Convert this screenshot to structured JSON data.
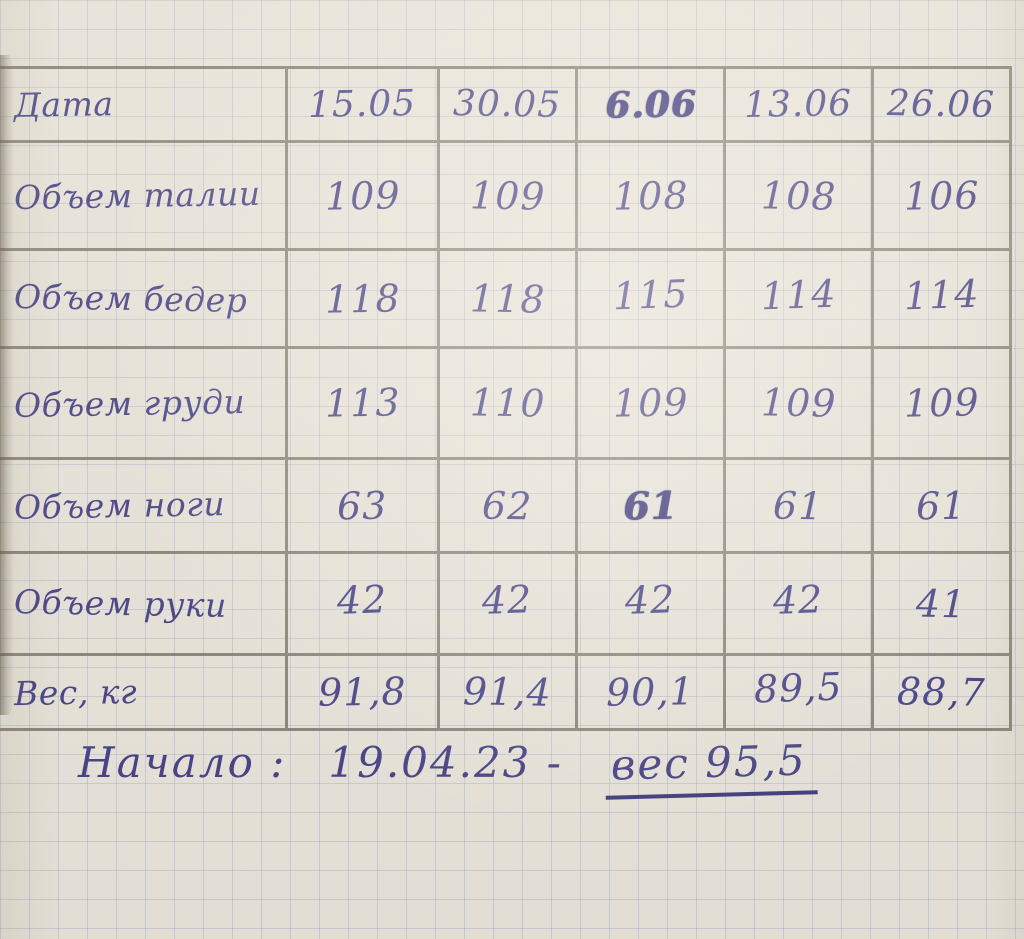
{
  "table": {
    "header": {
      "label": "Дата",
      "dates": [
        "15.05",
        "30.05",
        "6.06",
        "13.06",
        "26.06"
      ]
    },
    "rows": [
      {
        "label": "Объем талии",
        "values": [
          "109",
          "109",
          "108",
          "108",
          "106"
        ]
      },
      {
        "label": "Объем бедер",
        "values": [
          "118",
          "118",
          "115",
          "114",
          "114"
        ]
      },
      {
        "label": "Объем груди",
        "values": [
          "113",
          "110",
          "109",
          "109",
          "109"
        ]
      },
      {
        "label": "Объем ноги",
        "values": [
          "63",
          "62",
          "61",
          "61",
          "61"
        ]
      },
      {
        "label": "Объем руки",
        "values": [
          "42",
          "42",
          "42",
          "42",
          "41"
        ]
      },
      {
        "label": "Вес, кг",
        "values": [
          "91,8",
          "91,4",
          "90,1",
          "89,5",
          "88,7"
        ]
      }
    ]
  },
  "footer": {
    "prefix": "Начало :",
    "start_date": "19.04.23 -",
    "underlined": "вес 95,5"
  },
  "colors": {
    "ink": "#33307e",
    "pencil_line": "#686255",
    "grid_line": "#92a5c6",
    "paper": "#e9e5dc"
  }
}
